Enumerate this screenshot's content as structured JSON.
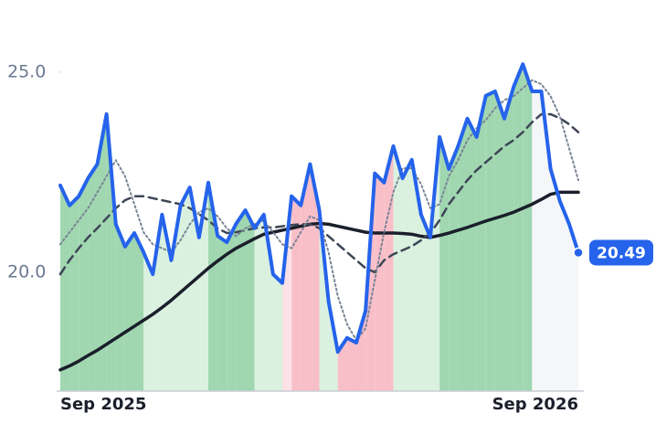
{
  "chart_data": {
    "type": "line",
    "categories": [
      "Sep 2025",
      null,
      null,
      null,
      null,
      null,
      null,
      null,
      null,
      null,
      null,
      null,
      null,
      null,
      null,
      null,
      null,
      null,
      null,
      null,
      null,
      null,
      null,
      null,
      null,
      null,
      null,
      null,
      null,
      null,
      null,
      null,
      null,
      null,
      null,
      null,
      null,
      null,
      null,
      null,
      null,
      null,
      null,
      null,
      null,
      null,
      null,
      null,
      null,
      null,
      null,
      null,
      "Sep 2026",
      null,
      null,
      null,
      null
    ],
    "ylim": [
      17.03,
      25.89
    ],
    "yticks": [
      {
        "value": 20,
        "label": "20.0"
      },
      {
        "value": 25,
        "label": "25.0"
      }
    ],
    "band_colors": [
      "#8fd0a2",
      "#8fd0a2",
      "#8fd0a2",
      "#8fd0a2",
      "#8fd0a2",
      "#8fd0a2",
      "#8fd0a2",
      "#8fd0a2",
      "#8fd0a2",
      "#d4eedb",
      "#d4eedb",
      "#d4eedb",
      "#d4eedb",
      "#d4eedb",
      "#d4eedb",
      "#d4eedb",
      "#8fd0a2",
      "#8fd0a2",
      "#8fd0a2",
      "#8fd0a2",
      "#8fd0a2",
      "#d4eedb",
      "#d4eedb",
      "#d4eedb",
      "#fcdde3",
      "#f8b4c0",
      "#f8b4c0",
      "#f8b4c0",
      "#d4eedb",
      "#d4eedb",
      "#f8b4c0",
      "#f8b4c0",
      "#f8b4c0",
      "#f8b4c0",
      "#f8b4c0",
      "#f8b4c0",
      "#d4eedb",
      "#d4eedb",
      "#d4eedb",
      "#d4eedb",
      "#d4eedb",
      "#8fd0a2",
      "#8fd0a2",
      "#8fd0a2",
      "#8fd0a2",
      "#8fd0a2",
      "#8fd0a2",
      "#8fd0a2",
      "#8fd0a2",
      "#8fd0a2",
      "#8fd0a2",
      "#f2f4f8",
      "#f2f4f8",
      "#f2f4f8",
      "#f2f4f8",
      "#f2f4f8",
      "#f2f4f8"
    ],
    "series": [
      {
        "color": "#2563eb",
        "style": "solid",
        "width": 4,
        "values": [
          22.17,
          21.67,
          21.9,
          22.35,
          22.7,
          23.95,
          21.2,
          20.64,
          20.98,
          20.5,
          19.95,
          21.44,
          20.3,
          21.67,
          22.12,
          20.87,
          22.24,
          20.91,
          20.75,
          21.21,
          21.55,
          21.1,
          21.44,
          19.95,
          19.73,
          21.9,
          21.67,
          22.7,
          21.55,
          19.27,
          18.01,
          18.36,
          18.24,
          19.04,
          22.47,
          22.24,
          23.15,
          22.35,
          22.81,
          21.44,
          20.87,
          23.38,
          22.58,
          23.15,
          23.84,
          23.38,
          24.41,
          24.52,
          23.84,
          24.63,
          25.2,
          24.52,
          24.52,
          22.58,
          21.78,
          21.21,
          20.49
        ]
      },
      {
        "color": "#7a8596",
        "style": "dotted",
        "width": 2,
        "values": [
          20.7,
          21.0,
          21.3,
          21.6,
          22.0,
          22.4,
          22.8,
          22.4,
          21.7,
          21.0,
          20.7,
          20.6,
          20.5,
          20.8,
          21.2,
          21.5,
          21.6,
          21.4,
          21.1,
          20.9,
          21.1,
          21.2,
          21.3,
          21.0,
          20.7,
          20.6,
          21.0,
          21.4,
          21.3,
          20.5,
          19.4,
          18.7,
          18.3,
          18.6,
          19.8,
          21.0,
          22.0,
          22.6,
          22.6,
          22.2,
          21.6,
          21.7,
          22.4,
          22.8,
          23.3,
          23.6,
          23.8,
          24.1,
          24.3,
          24.4,
          24.6,
          24.8,
          24.7,
          24.4,
          23.9,
          23.1,
          22.3
        ]
      },
      {
        "color": "#3d4656",
        "style": "dashed",
        "width": 2.5,
        "values": [
          19.95,
          20.3,
          20.6,
          20.87,
          21.1,
          21.35,
          21.6,
          21.8,
          21.9,
          21.9,
          21.85,
          21.8,
          21.75,
          21.7,
          21.6,
          21.45,
          21.3,
          21.1,
          20.98,
          21.0,
          21.05,
          21.1,
          21.12,
          21.12,
          21.15,
          21.18,
          21.2,
          21.2,
          21.1,
          20.9,
          20.7,
          20.5,
          20.3,
          20.1,
          20.0,
          20.3,
          20.45,
          20.55,
          20.65,
          20.8,
          20.98,
          21.3,
          21.7,
          22.0,
          22.3,
          22.55,
          22.75,
          22.95,
          23.15,
          23.3,
          23.5,
          23.75,
          23.95,
          23.95,
          23.85,
          23.7,
          23.5
        ]
      },
      {
        "color": "#1a1f2b",
        "style": "solid",
        "width": 3.5,
        "values": [
          17.56,
          17.66,
          17.78,
          17.92,
          18.05,
          18.2,
          18.35,
          18.5,
          18.65,
          18.8,
          18.95,
          19.12,
          19.3,
          19.5,
          19.7,
          19.9,
          20.1,
          20.28,
          20.45,
          20.6,
          20.72,
          20.84,
          20.95,
          21.0,
          21.05,
          21.1,
          21.15,
          21.2,
          21.22,
          21.2,
          21.15,
          21.1,
          21.05,
          21.0,
          20.98,
          20.98,
          20.98,
          20.97,
          20.95,
          20.9,
          20.87,
          20.92,
          20.98,
          21.05,
          21.12,
          21.2,
          21.28,
          21.35,
          21.42,
          21.5,
          21.6,
          21.7,
          21.82,
          21.95,
          22.0,
          22.0,
          22.0
        ]
      }
    ]
  }
}
